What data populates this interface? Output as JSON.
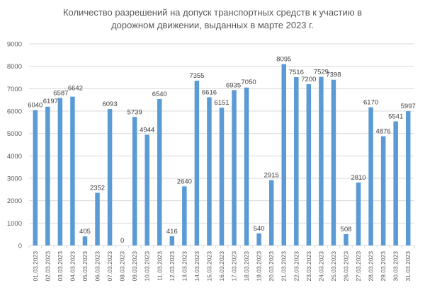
{
  "chart_data": {
    "type": "bar",
    "title": "Количество разрешений на допуск транспортных средств к участию в дорожном движении, выданных в марте 2023 г.",
    "title_lines": [
      "Количество разрешений на допуск транспортных средств к участию в",
      "дорожном движении, выданных в марте 2023 г."
    ],
    "xlabel": "",
    "ylabel": "",
    "ylim": [
      0,
      9000
    ],
    "yticks": [
      0,
      1000,
      2000,
      3000,
      4000,
      5000,
      6000,
      7000,
      8000,
      9000
    ],
    "grid": true,
    "legend": null,
    "bar_color": "#5B9BD5",
    "categories": [
      "01.03.2023",
      "02.03.2023",
      "03.03.2023",
      "04.03.2023",
      "05.03.2023",
      "06.03.2023",
      "07.03.2023",
      "08.03.2023",
      "09.03.2023",
      "10.03.2023",
      "11.03.2023",
      "12.03.2023",
      "13.03.2023",
      "14.03.2023",
      "15.03.2023",
      "16.03.2023",
      "17.03.2023",
      "18.03.2023",
      "19.03.2023",
      "20.03.2023",
      "21.03.2023",
      "22.03.2023",
      "23.03.2023",
      "24.03.2023",
      "25.03.2023",
      "26.03.2023",
      "27.03.2023",
      "28.03.2023",
      "29.03.2023",
      "30.03.2023",
      "31.03.2023"
    ],
    "values": [
      6040,
      6197,
      6587,
      6642,
      405,
      2352,
      6093,
      0,
      5739,
      4944,
      6540,
      416,
      2640,
      7355,
      6616,
      6151,
      6935,
      7050,
      540,
      2915,
      8095,
      7516,
      7200,
      7529,
      7398,
      508,
      2810,
      6170,
      4876,
      5541,
      5997
    ]
  }
}
